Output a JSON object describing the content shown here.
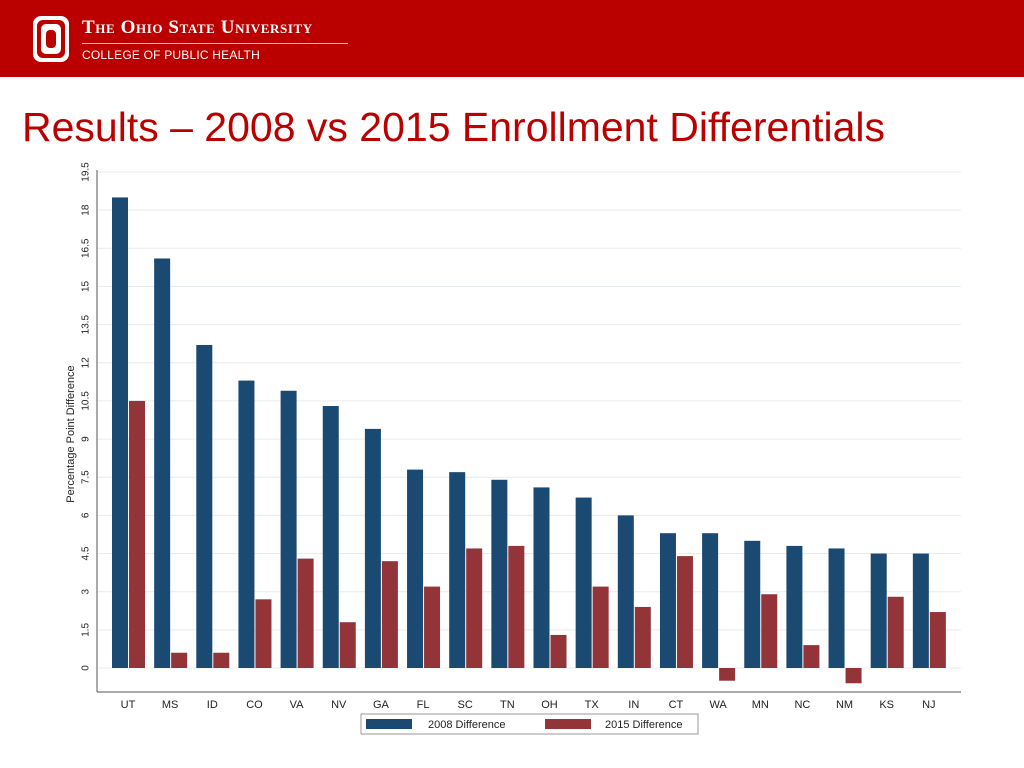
{
  "header": {
    "university": "The Ohio State University",
    "college": "COLLEGE OF PUBLIC HEALTH",
    "logo_icon": "block-o-logo",
    "brand_color": "#bb0000"
  },
  "slide": {
    "title": "Results – 2008 vs 2015 Enrollment Differentials"
  },
  "chart_data": {
    "type": "bar",
    "title": "",
    "xlabel": "",
    "ylabel": "Percentage Point Difference",
    "ylim": [
      -1,
      19.5
    ],
    "yticks": [
      0,
      1.5,
      3,
      4.5,
      6,
      7.5,
      9,
      10.5,
      12,
      13.5,
      15,
      16.5,
      18,
      19.5
    ],
    "ytick_labels": [
      "0",
      "1.5",
      "3",
      "4.5",
      "6",
      "7.5",
      "9",
      "10.5",
      "12",
      "13.5",
      "15",
      "16.5",
      "18",
      "19.5"
    ],
    "grid": true,
    "legend_position": "bottom",
    "categories": [
      "UT",
      "MS",
      "ID",
      "CO",
      "VA",
      "NV",
      "GA",
      "FL",
      "SC",
      "TN",
      "OH",
      "TX",
      "IN",
      "CT",
      "WA",
      "MN",
      "NC",
      "NM",
      "KS",
      "NJ"
    ],
    "series": [
      {
        "name": "2008 Difference",
        "color": "#1a4a72",
        "values": [
          18.5,
          16.1,
          12.7,
          11.3,
          10.9,
          10.3,
          9.4,
          7.8,
          7.7,
          7.4,
          7.1,
          6.7,
          6.0,
          5.3,
          5.3,
          5.0,
          4.8,
          4.7,
          4.5,
          4.5
        ]
      },
      {
        "name": "2015 Difference",
        "color": "#933439",
        "values": [
          10.5,
          0.6,
          0.6,
          2.7,
          4.3,
          1.8,
          4.2,
          3.2,
          4.7,
          4.8,
          1.3,
          3.2,
          2.4,
          4.4,
          -0.5,
          2.9,
          0.9,
          -0.6,
          2.8,
          2.2
        ]
      }
    ]
  }
}
